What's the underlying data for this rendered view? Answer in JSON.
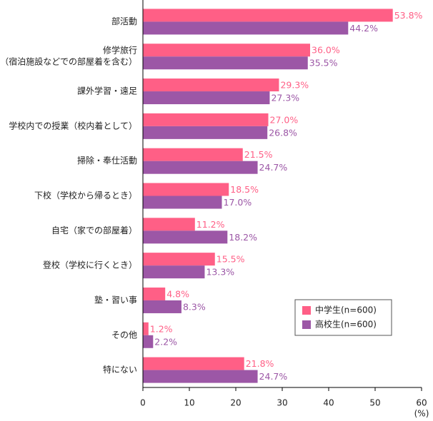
{
  "chart_data": {
    "type": "hbar",
    "categories": [
      "部活動",
      [
        "修学旅行",
        "（宿泊施設などでの部屋着を含む）"
      ],
      "課外学習・遠足",
      "学校内での授業（校内着として）",
      "掃除・奉仕活動",
      "下校（学校から帰るとき）",
      "自宅（家での部屋着）",
      "登校（学校に行くとき）",
      "塾・習い事",
      "その他",
      "特にない"
    ],
    "series": [
      {
        "name": "中学生(n=600)",
        "color": "#ff5f86",
        "values": [
          53.8,
          36.0,
          29.3,
          27.0,
          21.5,
          18.5,
          11.2,
          15.5,
          4.8,
          1.2,
          21.8
        ],
        "value_labels": [
          "53.8%",
          "36.0%",
          "29.3%",
          "27.0%",
          "21.5%",
          "18.5%",
          "11.2%",
          "15.5%",
          "4.8%",
          "1.2%",
          "21.8%"
        ]
      },
      {
        "name": "高校生(n=600)",
        "color": "#9c57a6",
        "values": [
          44.2,
          35.5,
          27.3,
          26.8,
          24.7,
          17.0,
          18.2,
          13.3,
          8.3,
          2.2,
          24.7
        ],
        "value_labels": [
          "44.2%",
          "35.5%",
          "27.3%",
          "26.8%",
          "24.7%",
          "17.0%",
          "18.2%",
          "13.3%",
          "8.3%",
          "2.2%",
          "24.7%"
        ]
      }
    ],
    "x_label": "(%)",
    "xlim": [
      0,
      60
    ],
    "xticks": [
      0,
      10,
      20,
      30,
      40,
      50,
      60
    ],
    "legend": "lower-right"
  }
}
